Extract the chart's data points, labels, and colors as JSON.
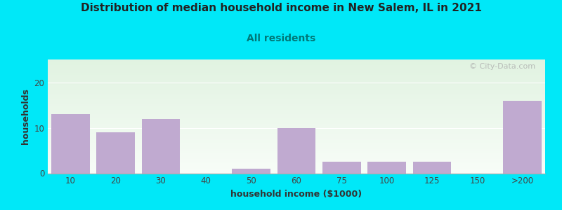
{
  "title": "Distribution of median household income in New Salem, IL in 2021",
  "subtitle": "All residents",
  "xlabel": "household income ($1000)",
  "ylabel": "households",
  "background_outer": "#00e8f8",
  "bar_color": "#c0aad0",
  "bar_edgecolor": "#c0aad0",
  "categories": [
    "10",
    "20",
    "30",
    "40",
    "50",
    "60",
    "75",
    "100",
    "125",
    "150",
    ">200"
  ],
  "values": [
    13,
    9,
    12,
    0,
    1,
    10,
    2.5,
    2.5,
    2.5,
    0,
    16
  ],
  "ylim": [
    0,
    25
  ],
  "yticks": [
    0,
    10,
    20
  ],
  "title_fontsize": 11,
  "subtitle_fontsize": 10,
  "label_fontsize": 9,
  "tick_fontsize": 8.5,
  "watermark_text": "© City-Data.com"
}
